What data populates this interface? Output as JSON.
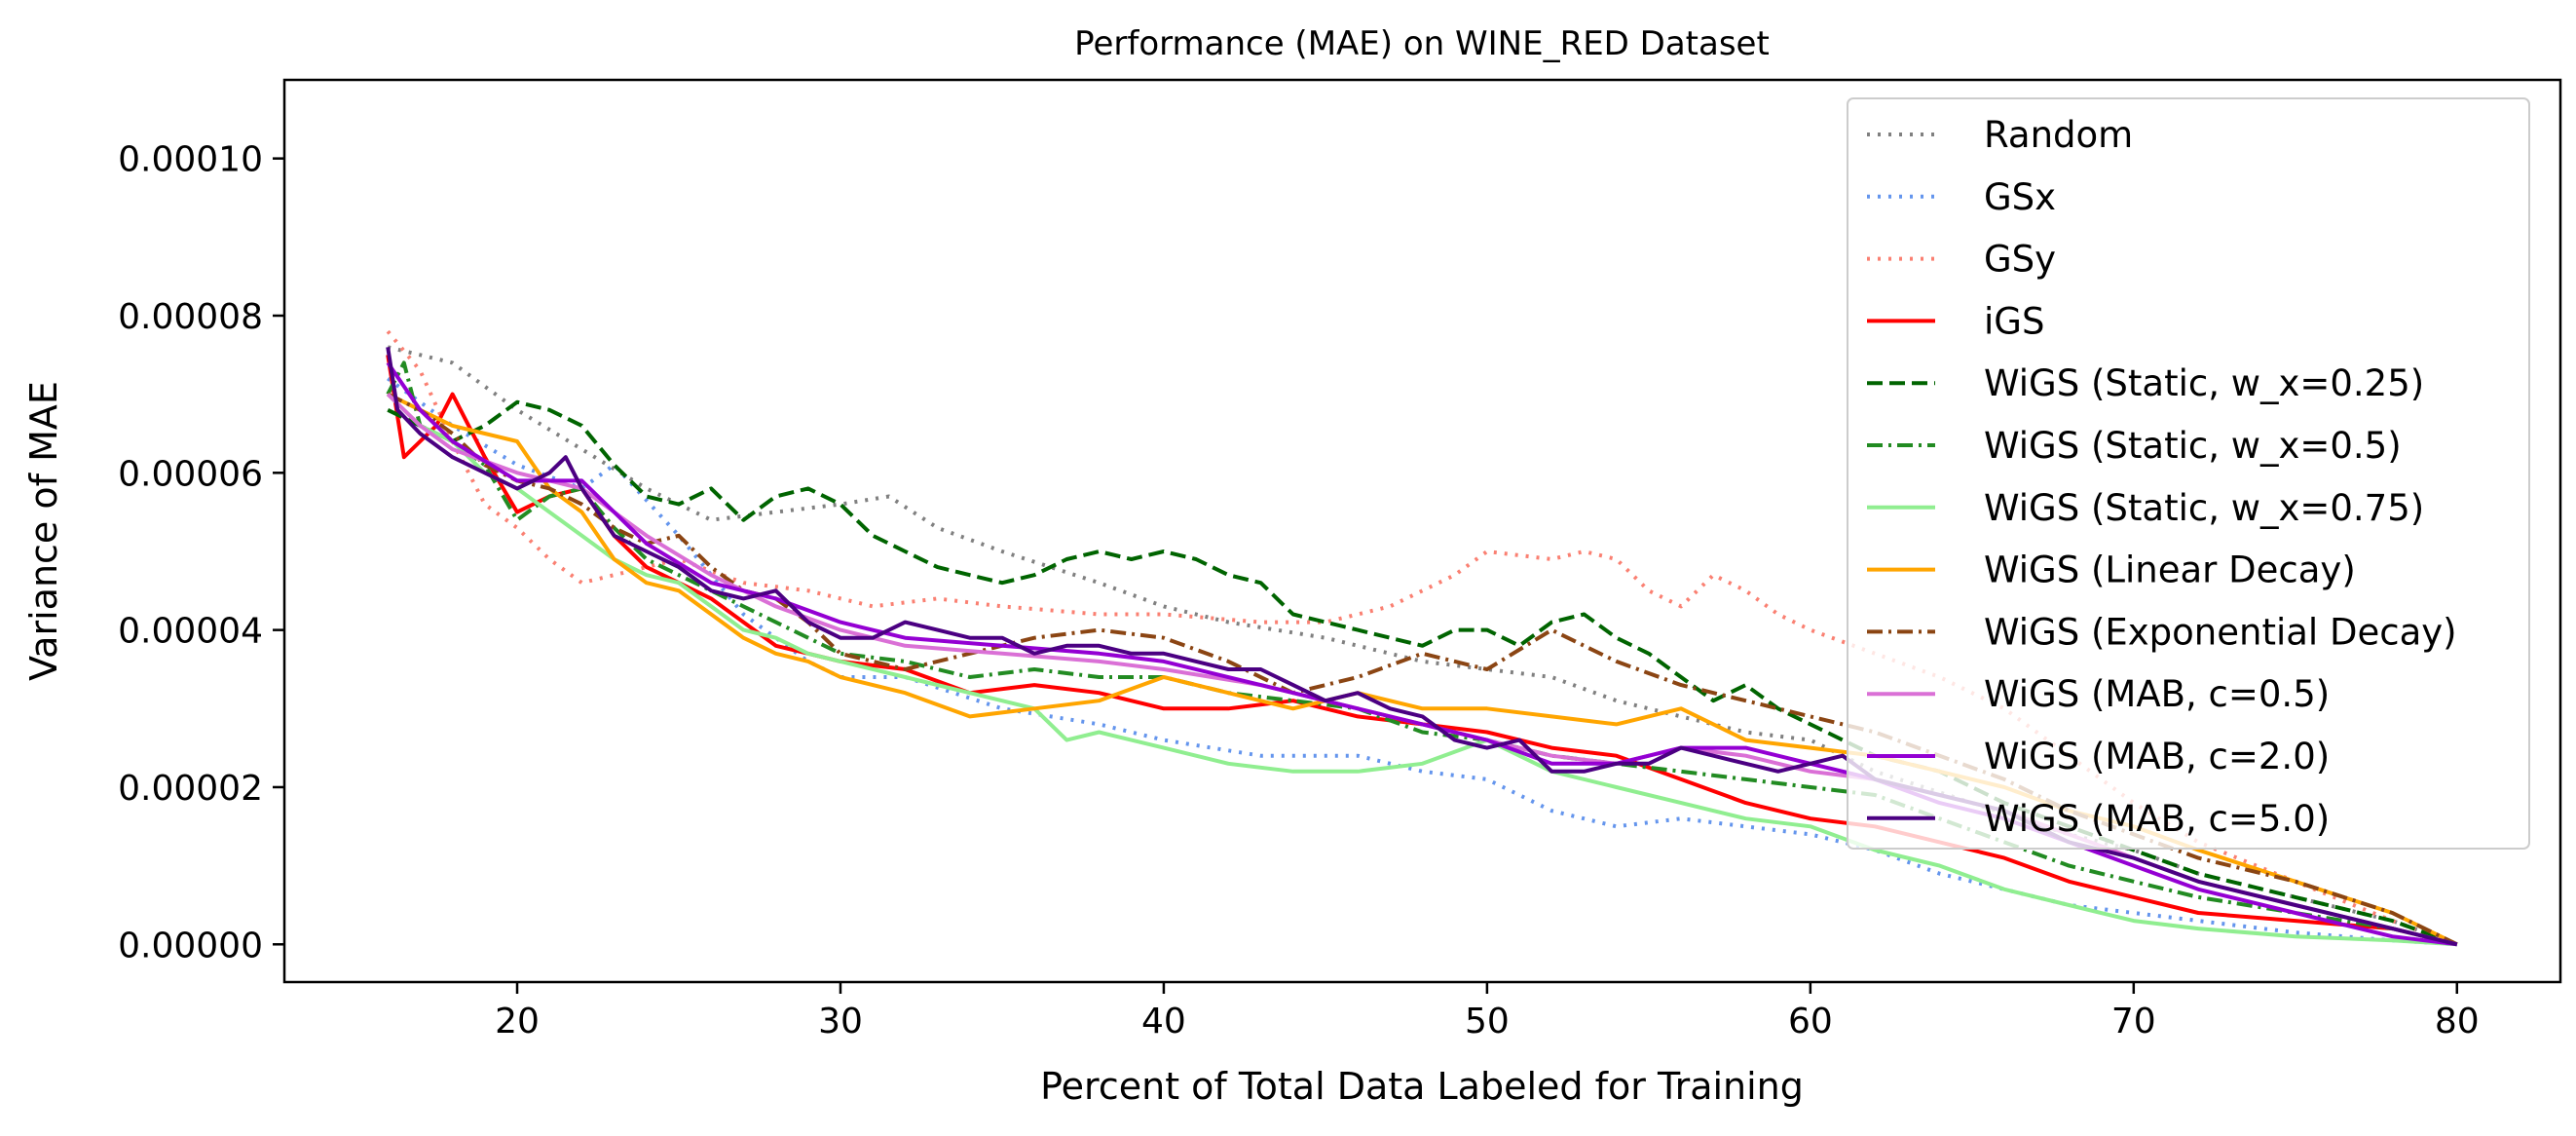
{
  "chart_data": {
    "type": "line",
    "title": "Performance (MAE) on WINE_RED Dataset",
    "xlabel": "Percent of Total Data Labeled for Training",
    "ylabel": "Variance of MAE",
    "xlim": [
      12.8,
      83.2
    ],
    "ylim": [
      -4.8e-06,
      0.00011
    ],
    "xticks": [
      20,
      30,
      40,
      50,
      60,
      70,
      80
    ],
    "xtick_labels": [
      "20",
      "30",
      "40",
      "50",
      "60",
      "70",
      "80"
    ],
    "yticks": [
      0,
      2e-05,
      4e-05,
      6e-05,
      8e-05,
      0.0001
    ],
    "ytick_labels": [
      "0.00000",
      "0.00002",
      "0.00004",
      "0.00006",
      "0.00008",
      "0.00010"
    ],
    "grid": false,
    "legend_position": "top-right",
    "series": [
      {
        "name": "Random",
        "color": "#808080",
        "dash": "dotted",
        "x": [
          16,
          17,
          18,
          20,
          22,
          24,
          26,
          28,
          30,
          31.5,
          33,
          35,
          38,
          40,
          42,
          45,
          48,
          50,
          52,
          54,
          56,
          58,
          60,
          62,
          65,
          68,
          70,
          72,
          75,
          78,
          80
        ],
        "y": [
          7.6e-05,
          7.5e-05,
          7.4e-05,
          6.8e-05,
          6.3e-05,
          5.8e-05,
          5.4e-05,
          5.5e-05,
          5.6e-05,
          5.7e-05,
          5.3e-05,
          5e-05,
          4.6e-05,
          4.3e-05,
          4.1e-05,
          3.9e-05,
          3.6e-05,
          3.5e-05,
          3.4e-05,
          3.1e-05,
          2.9e-05,
          2.7e-05,
          2.6e-05,
          2.2e-05,
          1.8e-05,
          1.4e-05,
          1.2e-05,
          9e-06,
          6e-06,
          3e-06,
          0
        ]
      },
      {
        "name": "GSx",
        "color": "#6495ED",
        "dash": "dotted",
        "x": [
          16,
          18,
          20,
          22,
          23,
          25,
          27,
          29,
          30,
          32,
          35,
          38,
          40,
          43,
          46,
          48,
          50,
          52,
          54,
          56,
          58,
          60,
          62,
          64,
          66,
          68,
          70,
          72,
          75,
          78,
          80
        ],
        "y": [
          7.2e-05,
          6.6e-05,
          6.1e-05,
          5.8e-05,
          6.1e-05,
          5.2e-05,
          4.2e-05,
          3.6e-05,
          3.4e-05,
          3.4e-05,
          3e-05,
          2.8e-05,
          2.6e-05,
          2.4e-05,
          2.4e-05,
          2.2e-05,
          2.1e-05,
          1.7e-05,
          1.5e-05,
          1.6e-05,
          1.5e-05,
          1.4e-05,
          1.2e-05,
          9e-06,
          7e-06,
          5e-06,
          4e-06,
          3e-06,
          1.5e-06,
          5e-07,
          0
        ]
      },
      {
        "name": "GSy",
        "color": "#FA8072",
        "dash": "dotted",
        "x": [
          16,
          17,
          18,
          19,
          20,
          21,
          22,
          23,
          25,
          27,
          29,
          31,
          33,
          35,
          38,
          40,
          43,
          45,
          47,
          49,
          50,
          52,
          53,
          54,
          55,
          56,
          57,
          58,
          59,
          60,
          62,
          64,
          66,
          68,
          70,
          72,
          75,
          78,
          80
        ],
        "y": [
          7.8e-05,
          7.3e-05,
          6.4e-05,
          5.6e-05,
          5.3e-05,
          4.9e-05,
          4.6e-05,
          4.7e-05,
          4.9e-05,
          4.6e-05,
          4.5e-05,
          4.3e-05,
          4.4e-05,
          4.3e-05,
          4.2e-05,
          4.2e-05,
          4.1e-05,
          4.1e-05,
          4.3e-05,
          4.7e-05,
          5e-05,
          4.9e-05,
          5e-05,
          4.9e-05,
          4.5e-05,
          4.3e-05,
          4.7e-05,
          4.5e-05,
          4.2e-05,
          4e-05,
          3.7e-05,
          3.4e-05,
          3e-05,
          2.4e-05,
          1.8e-05,
          1.3e-05,
          8e-06,
          3e-06,
          0
        ]
      },
      {
        "name": "iGS",
        "color": "#FF0000",
        "dash": "solid",
        "x": [
          16,
          16.5,
          17,
          17.5,
          18,
          19,
          20,
          21,
          22,
          23,
          24,
          25,
          26,
          27,
          28,
          29,
          30,
          32,
          34,
          36,
          38,
          40,
          42,
          44,
          46,
          48,
          50,
          52,
          54,
          56,
          58,
          60,
          62,
          64,
          66,
          68,
          70,
          72,
          75,
          78,
          80
        ],
        "y": [
          7.5e-05,
          6.2e-05,
          6.4e-05,
          6.6e-05,
          7e-05,
          6.2e-05,
          5.5e-05,
          5.7e-05,
          5.8e-05,
          5.2e-05,
          4.8e-05,
          4.6e-05,
          4.4e-05,
          4.1e-05,
          3.8e-05,
          3.7e-05,
          3.6e-05,
          3.5e-05,
          3.2e-05,
          3.3e-05,
          3.2e-05,
          3e-05,
          3e-05,
          3.1e-05,
          2.9e-05,
          2.8e-05,
          2.7e-05,
          2.5e-05,
          2.4e-05,
          2.1e-05,
          1.8e-05,
          1.6e-05,
          1.5e-05,
          1.3e-05,
          1.1e-05,
          8e-06,
          6e-06,
          4e-06,
          3e-06,
          2e-06,
          0
        ]
      },
      {
        "name": "WiGS (Static, w_x=0.25)",
        "color": "#006400",
        "dash": "dashed",
        "x": [
          16,
          17,
          18,
          19,
          20,
          21,
          22,
          23,
          24,
          25,
          26,
          27,
          28,
          29,
          30,
          31,
          32,
          33,
          34,
          35,
          36,
          37,
          38,
          39,
          40,
          41,
          42,
          43,
          44,
          45,
          46,
          47,
          48,
          49,
          50,
          51,
          52,
          53,
          54,
          55,
          56,
          57,
          58,
          59,
          60,
          62,
          64,
          66,
          68,
          70,
          72,
          75,
          78,
          80
        ],
        "y": [
          6.8e-05,
          6.6e-05,
          6.4e-05,
          6.6e-05,
          6.9e-05,
          6.8e-05,
          6.6e-05,
          6.1e-05,
          5.7e-05,
          5.6e-05,
          5.8e-05,
          5.4e-05,
          5.7e-05,
          5.8e-05,
          5.6e-05,
          5.2e-05,
          5e-05,
          4.8e-05,
          4.7e-05,
          4.6e-05,
          4.7e-05,
          4.9e-05,
          5e-05,
          4.9e-05,
          5e-05,
          4.9e-05,
          4.7e-05,
          4.6e-05,
          4.2e-05,
          4.1e-05,
          4e-05,
          3.9e-05,
          3.8e-05,
          4e-05,
          4e-05,
          3.8e-05,
          4.1e-05,
          4.2e-05,
          3.9e-05,
          3.7e-05,
          3.4e-05,
          3.1e-05,
          3.3e-05,
          3e-05,
          2.8e-05,
          2.4e-05,
          2.2e-05,
          1.8e-05,
          1.5e-05,
          1.2e-05,
          9e-06,
          6e-06,
          3e-06,
          0
        ]
      },
      {
        "name": "WiGS (Static, w_x=0.5)",
        "color": "#228B22",
        "dash": "dashdot",
        "x": [
          16,
          16.5,
          17,
          18,
          19,
          20,
          21,
          22,
          23,
          24,
          25,
          26,
          27,
          28,
          29,
          30,
          32,
          34,
          36,
          38,
          40,
          42,
          44,
          46,
          48,
          50,
          52,
          54,
          56,
          58,
          60,
          62,
          64,
          66,
          68,
          70,
          72,
          75,
          78,
          80
        ],
        "y": [
          7e-05,
          7.4e-05,
          6.6e-05,
          6.4e-05,
          6.1e-05,
          5.4e-05,
          5.7e-05,
          5.8e-05,
          5.3e-05,
          4.9e-05,
          4.7e-05,
          4.5e-05,
          4.3e-05,
          4.1e-05,
          3.9e-05,
          3.7e-05,
          3.6e-05,
          3.4e-05,
          3.5e-05,
          3.4e-05,
          3.4e-05,
          3.2e-05,
          3.1e-05,
          3e-05,
          2.7e-05,
          2.6e-05,
          2.4e-05,
          2.3e-05,
          2.2e-05,
          2.1e-05,
          2e-05,
          1.9e-05,
          1.6e-05,
          1.3e-05,
          1e-05,
          8e-06,
          6e-06,
          4e-06,
          2e-06,
          0
        ]
      },
      {
        "name": "WiGS (Static, w_x=0.75)",
        "color": "#90EE90",
        "dash": "solid",
        "x": [
          16,
          17,
          18,
          19,
          20,
          21,
          22,
          23,
          24,
          25,
          26,
          27,
          28,
          29,
          30,
          32,
          34,
          36,
          37,
          38,
          40,
          42,
          44,
          46,
          48,
          50,
          52,
          54,
          56,
          58,
          60,
          62,
          64,
          66,
          68,
          70,
          72,
          75,
          78,
          80
        ],
        "y": [
          7e-05,
          6.6e-05,
          6.4e-05,
          6e-05,
          5.8e-05,
          5.5e-05,
          5.2e-05,
          4.9e-05,
          4.7e-05,
          4.6e-05,
          4.3e-05,
          4e-05,
          3.9e-05,
          3.7e-05,
          3.6e-05,
          3.4e-05,
          3.2e-05,
          3e-05,
          2.6e-05,
          2.7e-05,
          2.5e-05,
          2.3e-05,
          2.2e-05,
          2.2e-05,
          2.3e-05,
          2.6e-05,
          2.2e-05,
          2e-05,
          1.8e-05,
          1.6e-05,
          1.5e-05,
          1.2e-05,
          1e-05,
          7e-06,
          5e-06,
          3e-06,
          2e-06,
          1e-06,
          5e-07,
          0
        ]
      },
      {
        "name": "WiGS (Linear Decay)",
        "color": "#FFA500",
        "dash": "solid",
        "x": [
          16,
          17,
          18,
          19,
          20,
          21,
          22,
          23,
          24,
          25,
          26,
          27,
          28,
          29,
          30,
          32,
          34,
          36,
          38,
          40,
          42,
          44,
          46,
          48,
          50,
          52,
          54,
          56,
          58,
          60,
          62,
          64,
          66,
          68,
          70,
          72,
          75,
          78,
          80
        ],
        "y": [
          7e-05,
          6.8e-05,
          6.6e-05,
          6.5e-05,
          6.4e-05,
          5.8e-05,
          5.5e-05,
          4.9e-05,
          4.6e-05,
          4.5e-05,
          4.2e-05,
          3.9e-05,
          3.7e-05,
          3.6e-05,
          3.4e-05,
          3.2e-05,
          2.9e-05,
          3e-05,
          3.1e-05,
          3.4e-05,
          3.2e-05,
          3e-05,
          3.2e-05,
          3e-05,
          3e-05,
          2.9e-05,
          2.8e-05,
          3e-05,
          2.6e-05,
          2.5e-05,
          2.4e-05,
          2.2e-05,
          2e-05,
          1.7e-05,
          1.5e-05,
          1.2e-05,
          8e-06,
          4e-06,
          0
        ]
      },
      {
        "name": "WiGS (Exponential Decay)",
        "color": "#8B4513",
        "dash": "dashdot",
        "x": [
          16,
          17,
          18,
          19,
          20,
          21,
          22,
          23,
          24,
          25,
          26,
          27,
          28,
          29,
          30,
          32,
          34,
          36,
          38,
          40,
          42,
          44,
          46,
          48,
          50,
          52,
          53,
          54,
          56,
          58,
          60,
          62,
          64,
          66,
          68,
          70,
          72,
          75,
          78,
          80
        ],
        "y": [
          7e-05,
          6.8e-05,
          6.5e-05,
          6.1e-05,
          5.9e-05,
          5.8e-05,
          5.6e-05,
          5.3e-05,
          5.1e-05,
          5.2e-05,
          4.8e-05,
          4.5e-05,
          4.4e-05,
          4.1e-05,
          3.7e-05,
          3.5e-05,
          3.7e-05,
          3.9e-05,
          4e-05,
          3.9e-05,
          3.6e-05,
          3.2e-05,
          3.4e-05,
          3.7e-05,
          3.5e-05,
          4e-05,
          3.8e-05,
          3.6e-05,
          3.3e-05,
          3.1e-05,
          2.9e-05,
          2.7e-05,
          2.4e-05,
          2.1e-05,
          1.7e-05,
          1.4e-05,
          1.1e-05,
          8e-06,
          4e-06,
          0
        ]
      },
      {
        "name": "WiGS (MAB, c=0.5)",
        "color": "#DA70D6",
        "dash": "solid",
        "x": [
          16,
          17,
          18,
          20,
          22,
          24,
          26,
          28,
          30,
          32,
          35,
          38,
          40,
          43,
          46,
          48,
          50,
          52,
          54,
          56,
          58,
          60,
          62,
          64,
          66,
          68,
          70,
          72,
          75,
          78,
          80
        ],
        "y": [
          7e-05,
          6.6e-05,
          6.3e-05,
          6e-05,
          5.8e-05,
          5.2e-05,
          4.7e-05,
          4.3e-05,
          4e-05,
          3.8e-05,
          3.7e-05,
          3.6e-05,
          3.5e-05,
          3.3e-05,
          3e-05,
          2.8e-05,
          2.6e-05,
          2.4e-05,
          2.3e-05,
          2.5e-05,
          2.4e-05,
          2.2e-05,
          2.1e-05,
          1.9e-05,
          1.7e-05,
          1.4e-05,
          1.1e-05,
          8e-06,
          5e-06,
          2e-06,
          0
        ]
      },
      {
        "name": "WiGS (MAB, c=2.0)",
        "color": "#9400D3",
        "dash": "solid",
        "x": [
          16,
          17,
          18,
          20,
          22,
          24,
          26,
          28,
          30,
          32,
          35,
          38,
          40,
          43,
          46,
          48,
          50,
          52,
          54,
          56,
          58,
          60,
          62,
          64,
          66,
          68,
          70,
          72,
          75,
          78,
          80
        ],
        "y": [
          7.4e-05,
          6.8e-05,
          6.4e-05,
          5.9e-05,
          5.9e-05,
          5.1e-05,
          4.6e-05,
          4.4e-05,
          4.1e-05,
          3.9e-05,
          3.8e-05,
          3.7e-05,
          3.6e-05,
          3.3e-05,
          3e-05,
          2.8e-05,
          2.6e-05,
          2.3e-05,
          2.3e-05,
          2.5e-05,
          2.5e-05,
          2.3e-05,
          2.1e-05,
          1.8e-05,
          1.6e-05,
          1.3e-05,
          1e-05,
          7e-06,
          4e-06,
          1e-06,
          0
        ]
      },
      {
        "name": "WiGS (MAB, c=5.0)",
        "color": "#4B0082",
        "dash": "solid",
        "x": [
          16,
          16.3,
          17,
          18,
          19,
          20,
          21,
          21.5,
          22,
          23,
          24,
          25,
          26,
          27,
          28,
          29,
          30,
          31,
          32,
          33,
          34,
          35,
          36,
          37,
          38,
          39,
          40,
          41,
          42,
          43,
          44,
          45,
          46,
          47,
          48,
          49,
          50,
          51,
          52,
          53,
          54,
          55,
          56,
          57,
          58,
          59,
          60,
          61,
          62,
          64,
          66,
          68,
          70,
          72,
          75,
          78,
          80
        ],
        "y": [
          7.6e-05,
          6.8e-05,
          6.5e-05,
          6.2e-05,
          6e-05,
          5.8e-05,
          6e-05,
          6.2e-05,
          5.8e-05,
          5.2e-05,
          5e-05,
          4.8e-05,
          4.5e-05,
          4.4e-05,
          4.5e-05,
          4.1e-05,
          3.9e-05,
          3.9e-05,
          4.1e-05,
          4e-05,
          3.9e-05,
          3.9e-05,
          3.7e-05,
          3.8e-05,
          3.8e-05,
          3.7e-05,
          3.7e-05,
          3.6e-05,
          3.5e-05,
          3.5e-05,
          3.3e-05,
          3.1e-05,
          3.2e-05,
          3e-05,
          2.9e-05,
          2.6e-05,
          2.5e-05,
          2.6e-05,
          2.2e-05,
          2.2e-05,
          2.3e-05,
          2.3e-05,
          2.5e-05,
          2.4e-05,
          2.3e-05,
          2.2e-05,
          2.3e-05,
          2.4e-05,
          2.1e-05,
          1.9e-05,
          1.7e-05,
          1.3e-05,
          1.1e-05,
          8e-06,
          5e-06,
          2e-06,
          0
        ]
      }
    ]
  }
}
